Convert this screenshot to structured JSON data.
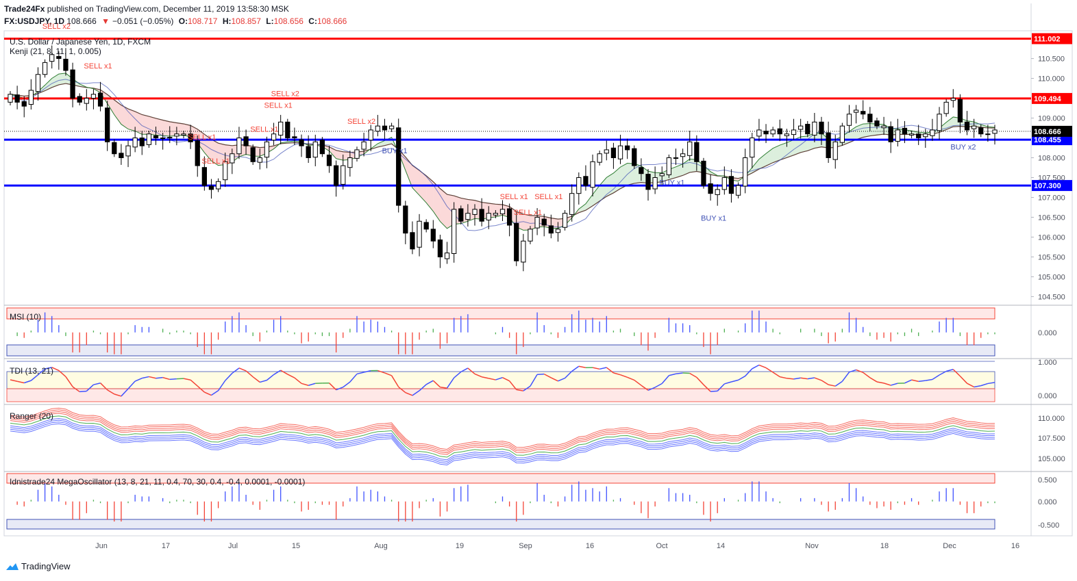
{
  "header": {
    "publisher": "Trade24Fx",
    "published_text": "published on TradingView.com, December 11, 2019 13:58:30 MSK",
    "symbol": "FX:USDJPY, 1D",
    "last": "108.666",
    "change": "−0.051 (−0.05%)",
    "o_label": "O:",
    "o": "108.717",
    "h_label": "H:",
    "h": "108.857",
    "l_label": "L:",
    "l": "108.656",
    "c_label": "C:",
    "c": "108.666"
  },
  "main_pane": {
    "title": "U.S. Dollar / Japanese Yen, 1D, FXCM",
    "indicator_label": "Kenji (21, 8, 11, 1, 0.005)",
    "price_ticks": [
      "110.500",
      "110.000",
      "109.000",
      "108.000",
      "107.500",
      "107.000",
      "106.500",
      "106.000",
      "105.500",
      "105.000",
      "104.500"
    ],
    "hlines": [
      {
        "value": "111.002",
        "color": "#ff0000"
      },
      {
        "value": "109.494",
        "color": "#ff0000"
      },
      {
        "value": "108.455",
        "color": "#0000ff"
      },
      {
        "value": "107.300",
        "color": "#0000ff"
      }
    ],
    "last_price_label": "108.666",
    "signals": [
      {
        "text": "SELL x2",
        "color": "#f44336"
      },
      {
        "text": "SELL x1",
        "color": "#f44336"
      },
      {
        "text": "SELL x1",
        "color": "#f44336"
      },
      {
        "text": "SELL x1",
        "color": "#f44336"
      },
      {
        "text": "SELL x1",
        "color": "#f44336"
      },
      {
        "text": "SELL x2",
        "color": "#f44336"
      },
      {
        "text": "SELL x1",
        "color": "#f44336"
      },
      {
        "text": "SELL x2",
        "color": "#f44336"
      },
      {
        "text": "SELL x1",
        "color": "#f44336"
      },
      {
        "text": "SELL x1",
        "color": "#f44336"
      },
      {
        "text": "SELL x1",
        "color": "#f44336"
      },
      {
        "text": "BUY x1",
        "color": "#3f51b5"
      },
      {
        "text": "BUY x1",
        "color": "#3f51b5"
      },
      {
        "text": "BUY x1",
        "color": "#3f51b5"
      },
      {
        "text": "BUY x2",
        "color": "#3f51b5"
      }
    ]
  },
  "panes": {
    "msi": {
      "label": "MSI (10)",
      "ticks": [
        "0.000"
      ]
    },
    "tdi": {
      "label": "TDI (13, 21)",
      "ticks": [
        "1.000",
        "0.000"
      ]
    },
    "ranger": {
      "label": "Ranger (20)",
      "ticks": [
        "110.000",
        "107.500",
        "105.000"
      ]
    },
    "mega": {
      "label": "Idnistrade24 MegaOscillator (13, 8, 21, 11, 0.4, 70, 30, 0.4, -0.4, 0.0001, -0.0001)",
      "ticks": [
        "0.500",
        "0.000",
        "-0.500"
      ]
    }
  },
  "x_axis": {
    "labels": [
      "Jun",
      "17",
      "Jul",
      "15",
      "Aug",
      "19",
      "Sep",
      "16",
      "Oct",
      "14",
      "Nov",
      "18",
      "Dec",
      "16"
    ]
  },
  "branding": {
    "text": "TradingView",
    "icon": "tradingview-logo-icon"
  },
  "colors": {
    "bull": "#ffffff",
    "bear": "#000000",
    "red_line": "#ff0000",
    "blue_line": "#0000ff",
    "sell": "#f44336",
    "buy": "#3f51b5"
  },
  "chart_data": {
    "type": "candlestick",
    "symbol": "USDJPY",
    "timeframe": "1D",
    "ylim": [
      104.3,
      111.2
    ],
    "x_start_date": "2019-05-16",
    "close": [
      109.6,
      109.4,
      109.3,
      109.7,
      110.1,
      110.4,
      110.6,
      110.5,
      110.2,
      109.5,
      109.4,
      109.5,
      109.6,
      109.3,
      108.4,
      108.1,
      108.0,
      108.3,
      108.5,
      108.3,
      108.6,
      108.5,
      108.5,
      108.5,
      108.6,
      108.6,
      108.4,
      107.8,
      107.3,
      107.2,
      107.4,
      107.9,
      108.1,
      108.5,
      108.3,
      107.9,
      108.0,
      108.4,
      108.6,
      108.9,
      108.5,
      108.5,
      108.3,
      108.0,
      108.4,
      108.1,
      107.8,
      107.3,
      107.8,
      108.0,
      108.2,
      108.4,
      108.7,
      108.8,
      108.7,
      108.8,
      106.8,
      106.1,
      105.7,
      106.4,
      106.2,
      105.9,
      105.5,
      105.6,
      106.7,
      106.4,
      106.6,
      106.7,
      106.4,
      106.6,
      106.6,
      106.7,
      106.3,
      105.4,
      105.9,
      106.2,
      106.5,
      106.3,
      106.1,
      106.2,
      106.6,
      107.1,
      107.5,
      107.3,
      107.9,
      108.1,
      108.2,
      108.0,
      108.3,
      108.2,
      107.8,
      107.6,
      107.2,
      107.5,
      107.6,
      108.0,
      108.0,
      108.1,
      108.4,
      107.9,
      107.3,
      107.1,
      107.2,
      107.5,
      107.1,
      107.3,
      108.0,
      108.5,
      108.7,
      108.6,
      108.7,
      108.6,
      108.6,
      108.7,
      108.8,
      108.6,
      108.9,
      108.6,
      108.0,
      108.4,
      108.8,
      109.1,
      109.2,
      109.1,
      108.9,
      108.8,
      108.8,
      108.4,
      108.7,
      108.6,
      108.6,
      108.5,
      108.6,
      108.7,
      109.1,
      109.4,
      109.5,
      108.9,
      108.7,
      108.8,
      108.6,
      108.6,
      108.7
    ]
  }
}
